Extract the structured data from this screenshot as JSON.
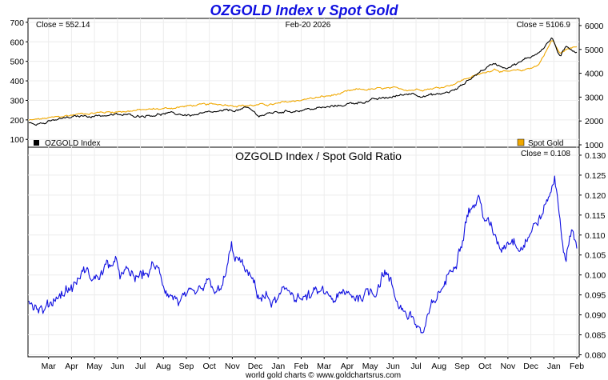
{
  "chart_data": [
    {
      "type": "line",
      "title": "OZGOLD Index v Spot Gold",
      "date_label": "Feb-20  2026",
      "left_close_label": "Close = 552.14",
      "right_close_label": "Close = 5106.9",
      "left_axis": {
        "ticks": [
          100,
          200,
          300,
          400,
          500,
          600,
          700
        ],
        "ylim": [
          60,
          720
        ]
      },
      "right_axis": {
        "ticks": [
          1000,
          2000,
          3000,
          4000,
          5000,
          6000
        ],
        "ylim": [
          900,
          6300
        ]
      },
      "series": [
        {
          "name": "OZGOLD Index",
          "axis": "left",
          "color": "#000000",
          "keypoints": [
            [
              0,
              190
            ],
            [
              0.03,
              185
            ],
            [
              0.06,
              205
            ],
            [
              0.1,
              220
            ],
            [
              0.15,
              225
            ],
            [
              0.2,
              222
            ],
            [
              0.25,
              232
            ],
            [
              0.3,
              224
            ],
            [
              0.35,
              240
            ],
            [
              0.4,
              258
            ],
            [
              0.42,
              222
            ],
            [
              0.45,
              238
            ],
            [
              0.5,
              252
            ],
            [
              0.55,
              265
            ],
            [
              0.6,
              290
            ],
            [
              0.65,
              310
            ],
            [
              0.7,
              338
            ],
            [
              0.72,
              325
            ],
            [
              0.75,
              330
            ],
            [
              0.78,
              355
            ],
            [
              0.8,
              400
            ],
            [
              0.83,
              460
            ],
            [
              0.85,
              490
            ],
            [
              0.87,
              470
            ],
            [
              0.9,
              500
            ],
            [
              0.93,
              545
            ],
            [
              0.955,
              620
            ],
            [
              0.97,
              520
            ],
            [
              0.98,
              570
            ],
            [
              1,
              552
            ]
          ]
        },
        {
          "name": "Spot Gold",
          "axis": "right",
          "color": "#f0a800",
          "keypoints": [
            [
              0,
              2020
            ],
            [
              0.05,
              2150
            ],
            [
              0.1,
              2320
            ],
            [
              0.15,
              2380
            ],
            [
              0.2,
              2450
            ],
            [
              0.25,
              2520
            ],
            [
              0.3,
              2650
            ],
            [
              0.35,
              2700
            ],
            [
              0.4,
              2650
            ],
            [
              0.45,
              2700
            ],
            [
              0.5,
              2900
            ],
            [
              0.55,
              3050
            ],
            [
              0.6,
              3300
            ],
            [
              0.65,
              3350
            ],
            [
              0.7,
              3320
            ],
            [
              0.75,
              3400
            ],
            [
              0.78,
              3600
            ],
            [
              0.8,
              3800
            ],
            [
              0.83,
              4000
            ],
            [
              0.85,
              4200
            ],
            [
              0.87,
              4050
            ],
            [
              0.9,
              4100
            ],
            [
              0.93,
              4350
            ],
            [
              0.955,
              5400
            ],
            [
              0.97,
              4800
            ],
            [
              0.98,
              5000
            ],
            [
              1,
              5107
            ]
          ]
        }
      ],
      "legend": [
        {
          "name": "OZGOLD Index",
          "color": "#000000",
          "position": "bottom-left"
        },
        {
          "name": "Spot Gold",
          "color": "#f0a800",
          "position": "bottom-right"
        }
      ]
    },
    {
      "type": "line",
      "title": "OZGOLD Index  /  Spot Gold Ratio",
      "close_label": "Close = 0.108",
      "axis": {
        "ticks": [
          0.08,
          0.085,
          0.09,
          0.095,
          0.1,
          0.105,
          0.11,
          0.115,
          0.12,
          0.125,
          0.13
        ],
        "ylim": [
          0.0795,
          0.132
        ]
      },
      "series": [
        {
          "name": "OZGOLD/Gold Ratio",
          "color": "#1010e0",
          "keypoints": [
            [
              0,
              0.094
            ],
            [
              0.03,
              0.091
            ],
            [
              0.05,
              0.095
            ],
            [
              0.08,
              0.097
            ],
            [
              0.1,
              0.101
            ],
            [
              0.12,
              0.099
            ],
            [
              0.15,
              0.103
            ],
            [
              0.17,
              0.1
            ],
            [
              0.2,
              0.099
            ],
            [
              0.23,
              0.102
            ],
            [
              0.25,
              0.097
            ],
            [
              0.27,
              0.094
            ],
            [
              0.3,
              0.093
            ],
            [
              0.33,
              0.097
            ],
            [
              0.35,
              0.095
            ],
            [
              0.37,
              0.106
            ],
            [
              0.39,
              0.102
            ],
            [
              0.42,
              0.095
            ],
            [
              0.45,
              0.093
            ],
            [
              0.48,
              0.096
            ],
            [
              0.5,
              0.094
            ],
            [
              0.53,
              0.095
            ],
            [
              0.56,
              0.094
            ],
            [
              0.6,
              0.095
            ],
            [
              0.63,
              0.096
            ],
            [
              0.65,
              0.102
            ],
            [
              0.67,
              0.094
            ],
            [
              0.7,
              0.089
            ],
            [
              0.72,
              0.085
            ],
            [
              0.74,
              0.093
            ],
            [
              0.77,
              0.101
            ],
            [
              0.79,
              0.11
            ],
            [
              0.8,
              0.116
            ],
            [
              0.82,
              0.119
            ],
            [
              0.84,
              0.112
            ],
            [
              0.86,
              0.107
            ],
            [
              0.88,
              0.11
            ],
            [
              0.9,
              0.108
            ],
            [
              0.92,
              0.112
            ],
            [
              0.94,
              0.116
            ],
            [
              0.96,
              0.124
            ],
            [
              0.97,
              0.114
            ],
            [
              0.98,
              0.103
            ],
            [
              0.99,
              0.112
            ],
            [
              1,
              0.108
            ]
          ]
        }
      ]
    }
  ],
  "x_axis": {
    "labels": [
      "Mar",
      "Apr",
      "May",
      "Jun",
      "Jul",
      "Aug",
      "Sep",
      "Oct",
      "Nov",
      "Dec",
      "Jan",
      "Feb",
      "Mar",
      "Apr",
      "May",
      "Jun",
      "Jul",
      "Aug",
      "Sep",
      "Oct",
      "Nov",
      "Dec",
      "Jan",
      "Feb"
    ]
  },
  "footer": "world gold charts © www.goldchartsrus.com"
}
